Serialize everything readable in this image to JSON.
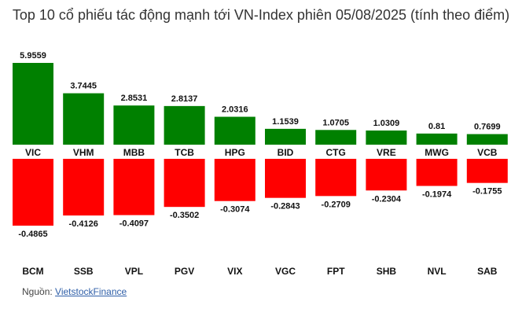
{
  "chart_data": {
    "type": "bar",
    "title": "Top 10 cổ phiếu tác động mạnh tới VN-Index phiên 05/08/2025 (tính theo điểm)",
    "colors": {
      "positive": "#008000",
      "negative": "#ff0000"
    },
    "positive": {
      "categories": [
        "VIC",
        "VHM",
        "MBB",
        "TCB",
        "HPG",
        "BID",
        "CTG",
        "VRE",
        "MWG",
        "VCB"
      ],
      "labels": [
        "5.9559",
        "3.7445",
        "2.8531",
        "2.8137",
        "2.0316",
        "1.1539",
        "1.0705",
        "1.0309",
        "0.81",
        "0.7699"
      ],
      "values": [
        5.9559,
        3.7445,
        2.8531,
        2.8137,
        2.0316,
        1.1539,
        1.0705,
        1.0309,
        0.81,
        0.7699
      ]
    },
    "negative": {
      "categories": [
        "BCM",
        "SSB",
        "VPL",
        "PGV",
        "VIX",
        "VGC",
        "FPT",
        "SHB",
        "NVL",
        "SAB"
      ],
      "labels": [
        "-0.4865",
        "-0.4126",
        "-0.4097",
        "-0.3502",
        "-0.3074",
        "-0.2843",
        "-0.2709",
        "-0.2304",
        "-0.1974",
        "-0.1755"
      ],
      "values": [
        -0.4865,
        -0.4126,
        -0.4097,
        -0.3502,
        -0.3074,
        -0.2843,
        -0.2709,
        -0.2304,
        -0.1974,
        -0.1755
      ]
    }
  },
  "source": {
    "label": "Nguồn:",
    "link_text": "VietstockFinance"
  }
}
